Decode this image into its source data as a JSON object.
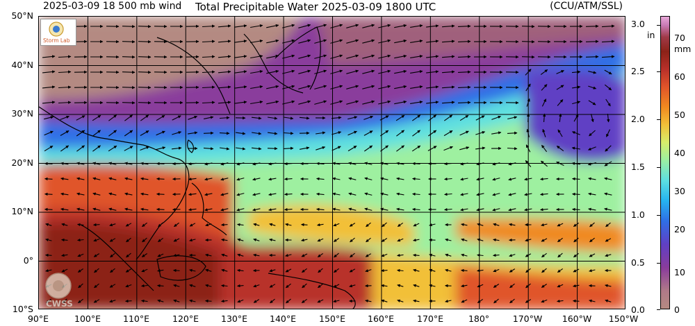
{
  "header": {
    "left": "2025-03-09 18 500 mb wind",
    "title": "Total Precipitable Water  2025-03-09 1800 UTC",
    "right": "(CCU/ATM/SSL)"
  },
  "lat_labels": [
    "50°N",
    "40°N",
    "30°N",
    "20°N",
    "10°N",
    "0°",
    "10°S"
  ],
  "lon_labels": [
    "90°E",
    "100°E",
    "110°E",
    "120°E",
    "130°E",
    "140°E",
    "150°E",
    "160°E",
    "170°E",
    "180°",
    "170°W",
    "160°W",
    "150°W"
  ],
  "colorbar": {
    "unit_in": "in",
    "unit_mm": "mm",
    "ticks_in": [
      "3.0",
      "2.5",
      "2.0",
      "1.5",
      "1.0",
      "0.5",
      "0.0"
    ],
    "ticks_mm": [
      "70",
      "60",
      "50",
      "40",
      "30",
      "20",
      "10",
      "0"
    ]
  },
  "logos": {
    "top_left": "Storm Lab",
    "bottom_left": "CWSS"
  },
  "palette": {
    "dry": "#b48a82",
    "purple": "#8a3c9c",
    "blue": "#2f6fe6",
    "cyan": "#5ee0e0",
    "green": "#9ef0a0",
    "yellow": "#d8ec6a",
    "orange": "#f08a20",
    "red": "#b8302a",
    "darkred": "#8c2218"
  }
}
